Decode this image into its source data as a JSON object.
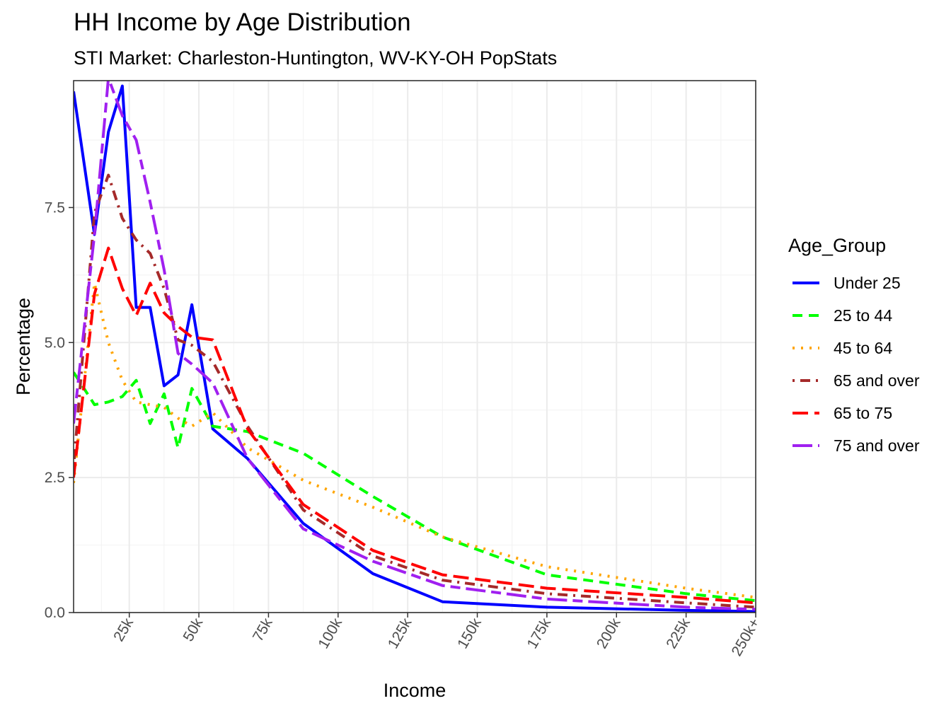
{
  "chart_data": {
    "type": "line",
    "title": "HH Income by Age Distribution",
    "subtitle": "STI Market: Charleston-Huntington, WV-KY-OH PopStats",
    "xlabel": "Income",
    "ylabel": "Percentage",
    "xlim": [
      5,
      250
    ],
    "ylim": [
      0,
      9.85
    ],
    "x_ticks": [
      25,
      50,
      75,
      100,
      125,
      150,
      175,
      200,
      225,
      250
    ],
    "x_tick_labels": [
      "25k",
      "50k",
      "75k",
      "100k",
      "125k",
      "150k",
      "175k",
      "200k",
      "225k",
      "250k+"
    ],
    "y_ticks": [
      0,
      2.5,
      5,
      7.5
    ],
    "y_tick_labels": [
      "0.0",
      "2.5",
      "5.0",
      "7.5"
    ],
    "grid": true,
    "legend_title": "Age_Group",
    "legend_position": "right",
    "x": [
      5,
      12.5,
      17.5,
      22.5,
      27.5,
      32.5,
      37.5,
      42.5,
      47.5,
      55,
      67.5,
      87.5,
      112.5,
      137.5,
      175,
      225,
      250
    ],
    "series": [
      {
        "name": "Under 25",
        "color": "#0000ff",
        "dash": "solid",
        "values": [
          9.65,
          7.0,
          8.9,
          9.75,
          5.65,
          5.65,
          4.2,
          4.4,
          5.7,
          3.4,
          2.85,
          1.65,
          0.72,
          0.2,
          0.1,
          0.04,
          0.02
        ]
      },
      {
        "name": "25 to 44",
        "color": "#00ff00",
        "dash": "dashed",
        "values": [
          4.45,
          3.85,
          3.9,
          4.0,
          4.3,
          3.5,
          4.05,
          3.05,
          4.15,
          3.45,
          3.35,
          2.95,
          2.15,
          1.4,
          0.7,
          0.35,
          0.22
        ]
      },
      {
        "name": "45 to 64",
        "color": "#ffa500",
        "dash": "dotted",
        "values": [
          2.4,
          6.1,
          5.0,
          4.3,
          3.9,
          3.85,
          3.8,
          3.6,
          3.45,
          3.7,
          3.05,
          2.45,
          1.95,
          1.4,
          0.85,
          0.45,
          0.28
        ]
      },
      {
        "name": "65 and over",
        "color": "#a52a2a",
        "dash": "dotdash",
        "values": [
          2.7,
          7.4,
          8.1,
          7.3,
          6.9,
          6.65,
          6.0,
          5.05,
          4.95,
          4.65,
          3.45,
          1.9,
          1.05,
          0.6,
          0.35,
          0.18,
          0.1
        ]
      },
      {
        "name": "65 to 75",
        "color": "#ff0000",
        "dash": "longdash",
        "values": [
          2.5,
          5.9,
          6.75,
          6.0,
          5.5,
          6.1,
          5.55,
          5.3,
          5.1,
          5.05,
          3.4,
          2.0,
          1.15,
          0.7,
          0.45,
          0.28,
          0.18
        ]
      },
      {
        "name": "75 and over",
        "color": "#a020f0",
        "dash": "twodash",
        "values": [
          3.5,
          7.0,
          9.9,
          9.2,
          8.75,
          7.6,
          6.35,
          4.8,
          4.6,
          4.25,
          2.85,
          1.55,
          0.95,
          0.5,
          0.25,
          0.1,
          0.06
        ]
      }
    ]
  }
}
